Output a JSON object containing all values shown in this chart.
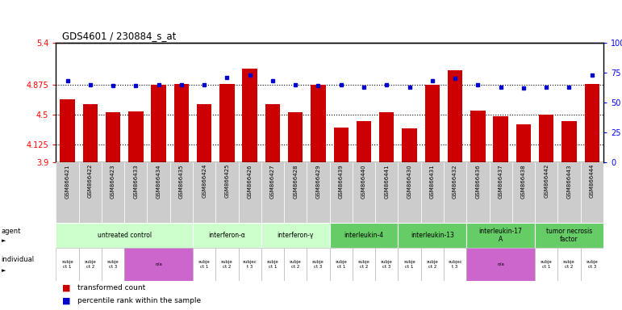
{
  "title": "GDS4601 / 230884_s_at",
  "samples": [
    "GSM866421",
    "GSM866422",
    "GSM866423",
    "GSM866433",
    "GSM866434",
    "GSM866435",
    "GSM866424",
    "GSM866425",
    "GSM866426",
    "GSM866427",
    "GSM866428",
    "GSM866429",
    "GSM866439",
    "GSM866440",
    "GSM866441",
    "GSM866430",
    "GSM866431",
    "GSM866432",
    "GSM866436",
    "GSM866437",
    "GSM866438",
    "GSM866442",
    "GSM866443",
    "GSM866444"
  ],
  "bar_values": [
    4.69,
    4.63,
    4.53,
    4.54,
    4.87,
    4.88,
    4.63,
    4.88,
    5.08,
    4.63,
    4.53,
    4.875,
    4.33,
    4.42,
    4.53,
    4.32,
    4.87,
    5.05,
    4.55,
    4.48,
    4.38,
    4.5,
    4.42,
    4.88
  ],
  "percentile_values": [
    68,
    65,
    64,
    64,
    65,
    65,
    65,
    71,
    73,
    68,
    65,
    64,
    65,
    63,
    65,
    63,
    68,
    70,
    65,
    63,
    62,
    63,
    63,
    73
  ],
  "ymin": 3.9,
  "ymax": 5.4,
  "yticks": [
    3.9,
    4.125,
    4.5,
    4.875,
    5.4
  ],
  "ytick_labels": [
    "3.9",
    "4.125",
    "4.5",
    "4.875",
    "5.4"
  ],
  "right_yticks": [
    0,
    25,
    50,
    75,
    100
  ],
  "right_ytick_labels": [
    "0",
    "25",
    "50",
    "75",
    "100%"
  ],
  "bar_color": "#cc0000",
  "dot_color": "#0000cc",
  "hline_values": [
    4.125,
    4.5,
    4.875
  ],
  "agent_groups": [
    {
      "label": "untreated control",
      "start": 0,
      "end": 5,
      "color": "#ccffcc"
    },
    {
      "label": "interferon-α",
      "start": 6,
      "end": 8,
      "color": "#ccffcc"
    },
    {
      "label": "interferon-γ",
      "start": 9,
      "end": 11,
      "color": "#ccffcc"
    },
    {
      "label": "interleukin-4",
      "start": 12,
      "end": 14,
      "color": "#66cc66"
    },
    {
      "label": "interleukin-13",
      "start": 15,
      "end": 17,
      "color": "#66cc66"
    },
    {
      "label": "interleukin-17\nA",
      "start": 18,
      "end": 20,
      "color": "#66cc66"
    },
    {
      "label": "tumor necrosis\nfactor",
      "start": 21,
      "end": 23,
      "color": "#66cc66"
    }
  ],
  "individual_groups": [
    {
      "label": "subje\nct 1",
      "start": 0,
      "end": 0,
      "color": "#ffffff"
    },
    {
      "label": "subje\nct 2",
      "start": 1,
      "end": 1,
      "color": "#ffffff"
    },
    {
      "label": "subje\nct 3",
      "start": 2,
      "end": 2,
      "color": "#ffffff"
    },
    {
      "label": "n/a",
      "start": 3,
      "end": 5,
      "color": "#cc66cc"
    },
    {
      "label": "subje\nct 1",
      "start": 6,
      "end": 6,
      "color": "#ffffff"
    },
    {
      "label": "subje\nct 2",
      "start": 7,
      "end": 7,
      "color": "#ffffff"
    },
    {
      "label": "subjec\nt 3",
      "start": 8,
      "end": 8,
      "color": "#ffffff"
    },
    {
      "label": "subje\nct 1",
      "start": 9,
      "end": 9,
      "color": "#ffffff"
    },
    {
      "label": "subje\nct 2",
      "start": 10,
      "end": 10,
      "color": "#ffffff"
    },
    {
      "label": "subje\nct 3",
      "start": 11,
      "end": 11,
      "color": "#ffffff"
    },
    {
      "label": "subje\nct 1",
      "start": 12,
      "end": 12,
      "color": "#ffffff"
    },
    {
      "label": "subje\nct 2",
      "start": 13,
      "end": 13,
      "color": "#ffffff"
    },
    {
      "label": "subje\nct 3",
      "start": 14,
      "end": 14,
      "color": "#ffffff"
    },
    {
      "label": "subje\nct 1",
      "start": 15,
      "end": 15,
      "color": "#ffffff"
    },
    {
      "label": "subje\nct 2",
      "start": 16,
      "end": 16,
      "color": "#ffffff"
    },
    {
      "label": "subjec\nt 3",
      "start": 17,
      "end": 17,
      "color": "#ffffff"
    },
    {
      "label": "n/a",
      "start": 18,
      "end": 20,
      "color": "#cc66cc"
    },
    {
      "label": "subje\nct 1",
      "start": 21,
      "end": 21,
      "color": "#ffffff"
    },
    {
      "label": "subje\nct 2",
      "start": 22,
      "end": 22,
      "color": "#ffffff"
    },
    {
      "label": "subje\nct 3",
      "start": 23,
      "end": 23,
      "color": "#ffffff"
    }
  ]
}
